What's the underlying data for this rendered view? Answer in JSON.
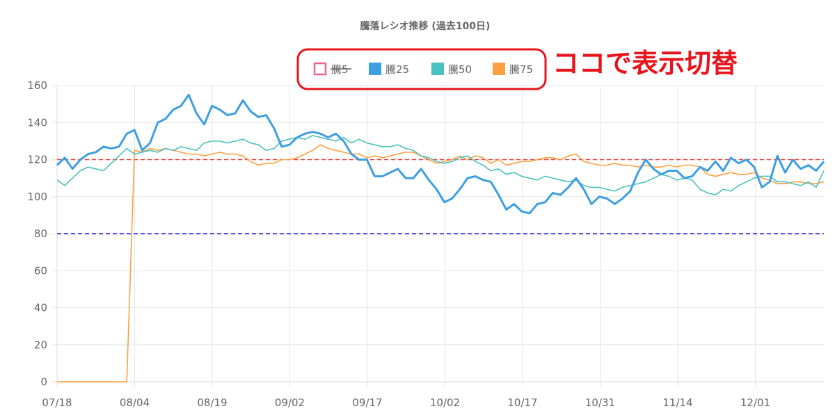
{
  "chart_data": {
    "type": "line",
    "title": "騰落レシオ推移 (過去100日)",
    "xlabel": "",
    "ylabel": "",
    "ylim": [
      0,
      160
    ],
    "yticks": [
      0,
      20,
      40,
      60,
      80,
      100,
      120,
      140,
      160
    ],
    "x_tick_labels": [
      "07/18",
      "08/04",
      "08/19",
      "09/02",
      "09/17",
      "10/02",
      "10/17",
      "10/31",
      "11/14",
      "12/01"
    ],
    "grid": true,
    "legend_position": "top",
    "reference_lines": [
      {
        "value": 120,
        "color": "#e53935",
        "style": "dashed"
      },
      {
        "value": 80,
        "color": "#1e1ee0",
        "style": "dashed"
      }
    ],
    "series": [
      {
        "name": "騰5",
        "color": "#f06292",
        "hidden": true,
        "values": []
      },
      {
        "name": "騰25",
        "color": "#3d9fe0",
        "values": [
          117,
          121,
          115,
          120,
          123,
          124,
          127,
          126,
          127,
          134,
          136,
          125,
          129,
          140,
          142,
          147,
          149,
          155,
          145,
          139,
          149,
          147,
          144,
          145,
          152,
          146,
          143,
          144,
          137,
          127,
          128,
          132,
          134,
          135,
          134,
          132,
          134,
          130,
          123,
          120,
          120,
          111,
          111,
          113,
          115,
          110,
          110,
          115,
          109,
          104,
          97,
          99,
          104,
          110,
          111,
          109,
          108,
          101,
          93,
          96,
          92,
          91,
          96,
          97,
          102,
          101,
          105,
          110,
          104,
          96,
          100,
          99,
          96,
          99,
          103,
          113,
          120,
          115,
          112,
          114,
          114,
          110,
          111,
          116,
          114,
          119,
          114,
          121,
          118,
          120,
          116,
          105,
          108,
          122,
          113,
          120,
          115,
          117,
          114,
          119
        ]
      },
      {
        "name": "騰50",
        "color": "#4bc0c0",
        "values": [
          109,
          106,
          110,
          114,
          116,
          115,
          114,
          118,
          122,
          126,
          123,
          124,
          125,
          124,
          126,
          125,
          127,
          126,
          125,
          129,
          130,
          130,
          129,
          130,
          131,
          129,
          128,
          125,
          126,
          130,
          131,
          132,
          131,
          133,
          132,
          131,
          130,
          132,
          129,
          131,
          129,
          128,
          127,
          127,
          128,
          126,
          125,
          122,
          121,
          119,
          118,
          119,
          121,
          122,
          119,
          117,
          114,
          115,
          112,
          113,
          111,
          110,
          109,
          111,
          110,
          109,
          108,
          109,
          106,
          105,
          105,
          104,
          103,
          105,
          106,
          107,
          108,
          110,
          112,
          111,
          109,
          110,
          109,
          104,
          102,
          101,
          104,
          103,
          106,
          108,
          110,
          111,
          111,
          108,
          108,
          107,
          106,
          108,
          105,
          114
        ]
      },
      {
        "name": "騰75",
        "color": "#ff9f40",
        "values": [
          0,
          0,
          0,
          0,
          0,
          0,
          0,
          0,
          0,
          0,
          125,
          124,
          126,
          125,
          126,
          125,
          124,
          123,
          123,
          122,
          123,
          124,
          123,
          123,
          122,
          119,
          117,
          118,
          118,
          120,
          120,
          121,
          123,
          125,
          128,
          126,
          125,
          124,
          123,
          123,
          121,
          122,
          121,
          122,
          123,
          124,
          124,
          122,
          120,
          118,
          119,
          120,
          122,
          120,
          122,
          121,
          118,
          120,
          117,
          118,
          119,
          119,
          120,
          121,
          121,
          120,
          122,
          123,
          119,
          118,
          117,
          117,
          118,
          117,
          117,
          116,
          117,
          116,
          116,
          117,
          116,
          117,
          117,
          116,
          112,
          111,
          112,
          113,
          112,
          112,
          113,
          110,
          109,
          107,
          107,
          108,
          108,
          107,
          107,
          108
        ]
      }
    ]
  },
  "annotation": {
    "label": "ココで表示切替",
    "color": "#e8141c"
  }
}
